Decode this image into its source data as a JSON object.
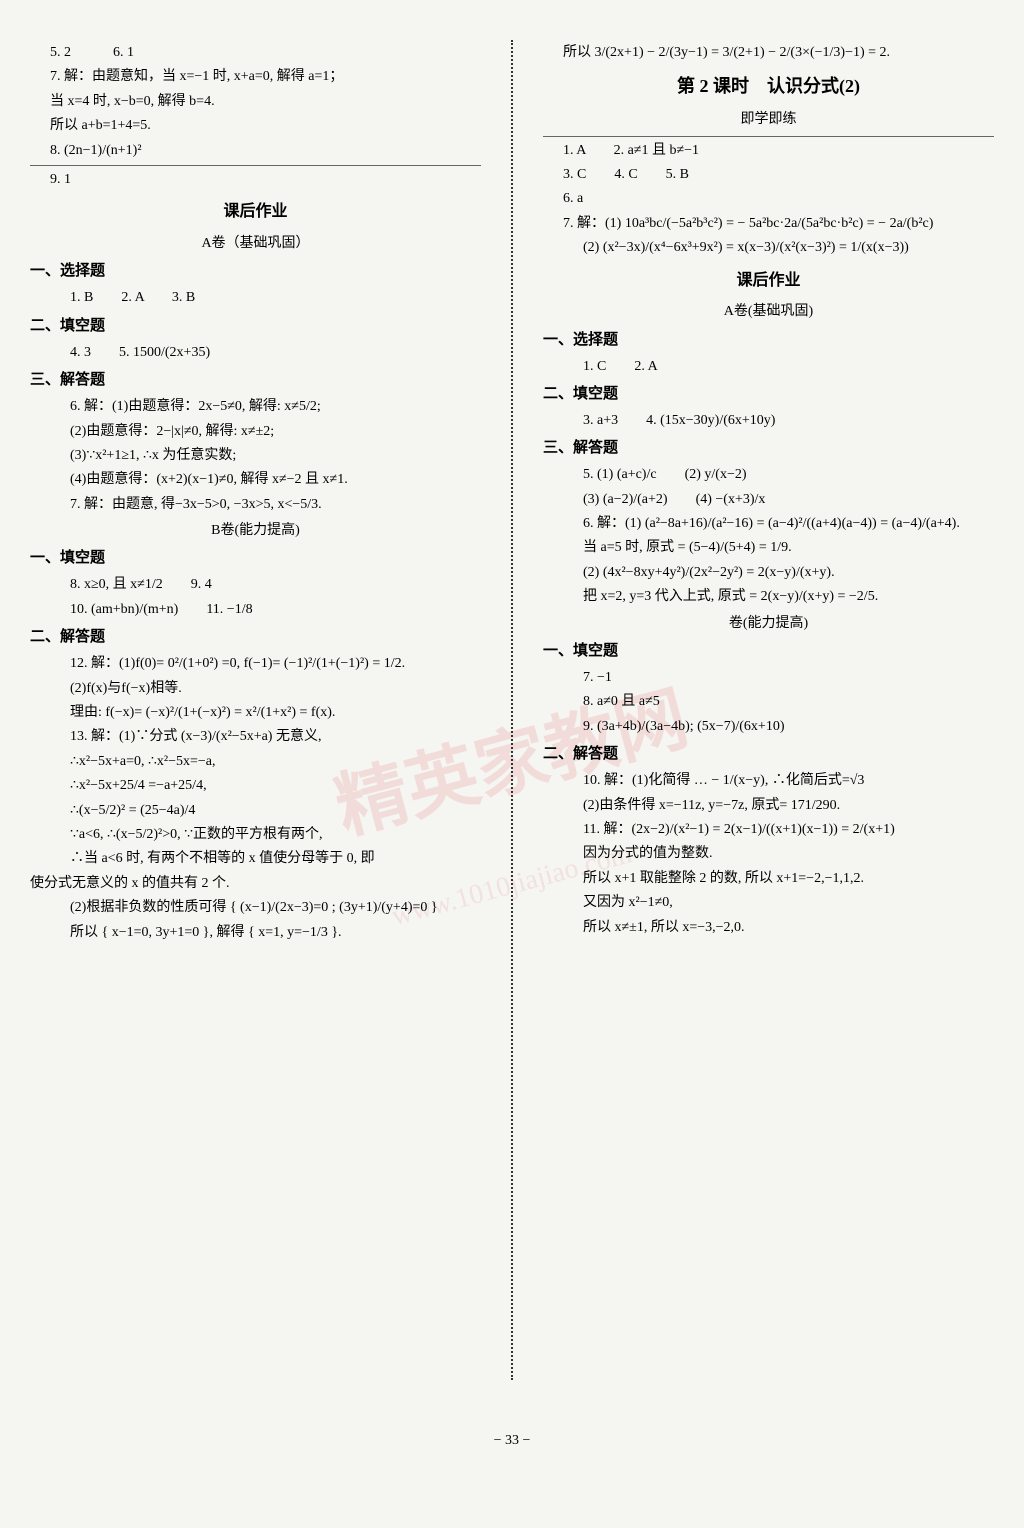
{
  "watermark": "精英家教网",
  "watermark_url": "www.1010jiajiao.com",
  "page_number": "− 33 −",
  "left": {
    "top": [
      "5. 2　　　6. 1",
      "7. 解：由题意知，当 x=−1 时, x+a=0, 解得 a=1；",
      "当 x=4 时, x−b=0, 解得 b=4.",
      "所以 a+b=1+4=5.",
      "8. (2n−1)/(n+1)²"
    ],
    "after_line": "9. 1",
    "kehou_title": "课后作业",
    "a_juan": "A卷（基础巩固）",
    "sec1_heading": "一、选择题",
    "sec1_items": "1. B　　2. A　　3. B",
    "sec2_heading": "二、填空题",
    "sec2_items": "4. 3　　5. 1500/(2x+35)",
    "sec3_heading": "三、解答题",
    "sec3_lines": [
      "6. 解：(1)由题意得：2x−5≠0, 解得: x≠5/2;",
      "(2)由题意得：2−|x|≠0, 解得: x≠±2;",
      "(3)∵x²+1≥1, ∴x 为任意实数;",
      "(4)由题意得：(x+2)(x−1)≠0, 解得 x≠−2 且 x≠1.",
      "7. 解：由题意, 得−3x−5>0, −3x>5, x<−5/3."
    ],
    "b_juan": "B卷(能力提高)",
    "b_sec1_heading": "一、填空题",
    "b_sec1_lines": [
      "8. x≥0, 且 x≠1/2　　9. 4",
      "10. (am+bn)/(m+n)　　11. −1/8"
    ],
    "b_sec2_heading": "二、解答题",
    "b_sec2_lines": [
      "12. 解：(1)f(0)= 0²/(1+0²) =0, f(−1)= (−1)²/(1+(−1)²) = 1/2.",
      "(2)f(x)与f(−x)相等.",
      "理由: f(−x)= (−x)²/(1+(−x)²) = x²/(1+x²) = f(x).",
      "13. 解：(1)∵分式 (x−3)/(x²−5x+a) 无意义,",
      "∴x²−5x+a=0, ∴x²−5x=−a,",
      "∴x²−5x+25/4 =−a+25/4,",
      "∴(x−5/2)² = (25−4a)/4",
      "∵a<6, ∴(x−5/2)²>0, ∵正数的平方根有两个,",
      "∴当 a<6 时, 有两个不相等的 x 值使分母等于 0, 即",
      "使分式无意义的 x 的值共有 2 个.",
      "(2)根据非负数的性质可得 { (x−1)/(2x−3)=0 ; (3y+1)/(y+4)=0 }",
      "所以 { x−1=0, 3y+1=0 }, 解得 { x=1, y=−1/3 }."
    ]
  },
  "right": {
    "top_line": "所以 3/(2x+1) − 2/(3y−1) = 3/(2+1) − 2/(3×(−1/3)−1) = 2.",
    "title": "第 2 课时　认识分式(2)",
    "subtitle": "即学即练",
    "line_items_1": "1. A　　2. a≠1 且 b≠−1",
    "line_items_2": "3. C　　4. C　　5. B",
    "line_items_3": "6. a",
    "q7_lines": [
      "7. 解：(1) 10a³bc/(−5a²b³c²) = − 5a²bc·2a/(5a²bc·b²c) = − 2a/(b²c)",
      "(2) (x²−3x)/(x⁴−6x³+9x²) = x(x−3)/(x²(x−3)²) = 1/(x(x−3))"
    ],
    "kehou_title": "课后作业",
    "a_juan": "A卷(基础巩固)",
    "a_sec1_heading": "一、选择题",
    "a_sec1_items": "1. C　　2. A",
    "a_sec2_heading": "二、填空题",
    "a_sec2_items": "3. a+3　　4. (15x−30y)/(6x+10y)",
    "a_sec3_heading": "三、解答题",
    "a_sec3_lines": [
      "5. (1) (a+c)/c　　(2) y/(x−2)",
      "(3) (a−2)/(a+2)　　(4) −(x+3)/x",
      "6. 解：(1) (a²−8a+16)/(a²−16) = (a−4)²/((a+4)(a−4)) = (a−4)/(a+4).",
      "当 a=5 时, 原式 = (5−4)/(5+4) = 1/9.",
      "(2) (4x²−8xy+4y²)/(2x²−2y²) = 2(x−y)/(x+y).",
      "把 x=2, y=3 代入上式, 原式 = 2(x−y)/(x+y) = −2/5."
    ],
    "b_juan": "卷(能力提高)",
    "b_sec1_heading": "一、填空题",
    "b_sec1_lines": [
      "7. −1",
      "8. a≠0 且 a≠5",
      "9. (3a+4b)/(3a−4b); (5x−7)/(6x+10)"
    ],
    "b_sec2_heading": "二、解答题",
    "b_sec2_lines": [
      "10. 解：(1)化简得 … − 1/(x−y), ∴化简后式=√3",
      "(2)由条件得 x=−11z, y=−7z, 原式= 171/290.",
      "11. 解：(2x−2)/(x²−1) = 2(x−1)/((x+1)(x−1)) = 2/(x+1)",
      "因为分式的值为整数.",
      "所以 x+1 取能整除 2 的数, 所以 x+1=−2,−1,1,2.",
      "又因为 x²−1≠0,",
      "所以 x≠±1, 所以 x=−3,−2,0."
    ]
  }
}
